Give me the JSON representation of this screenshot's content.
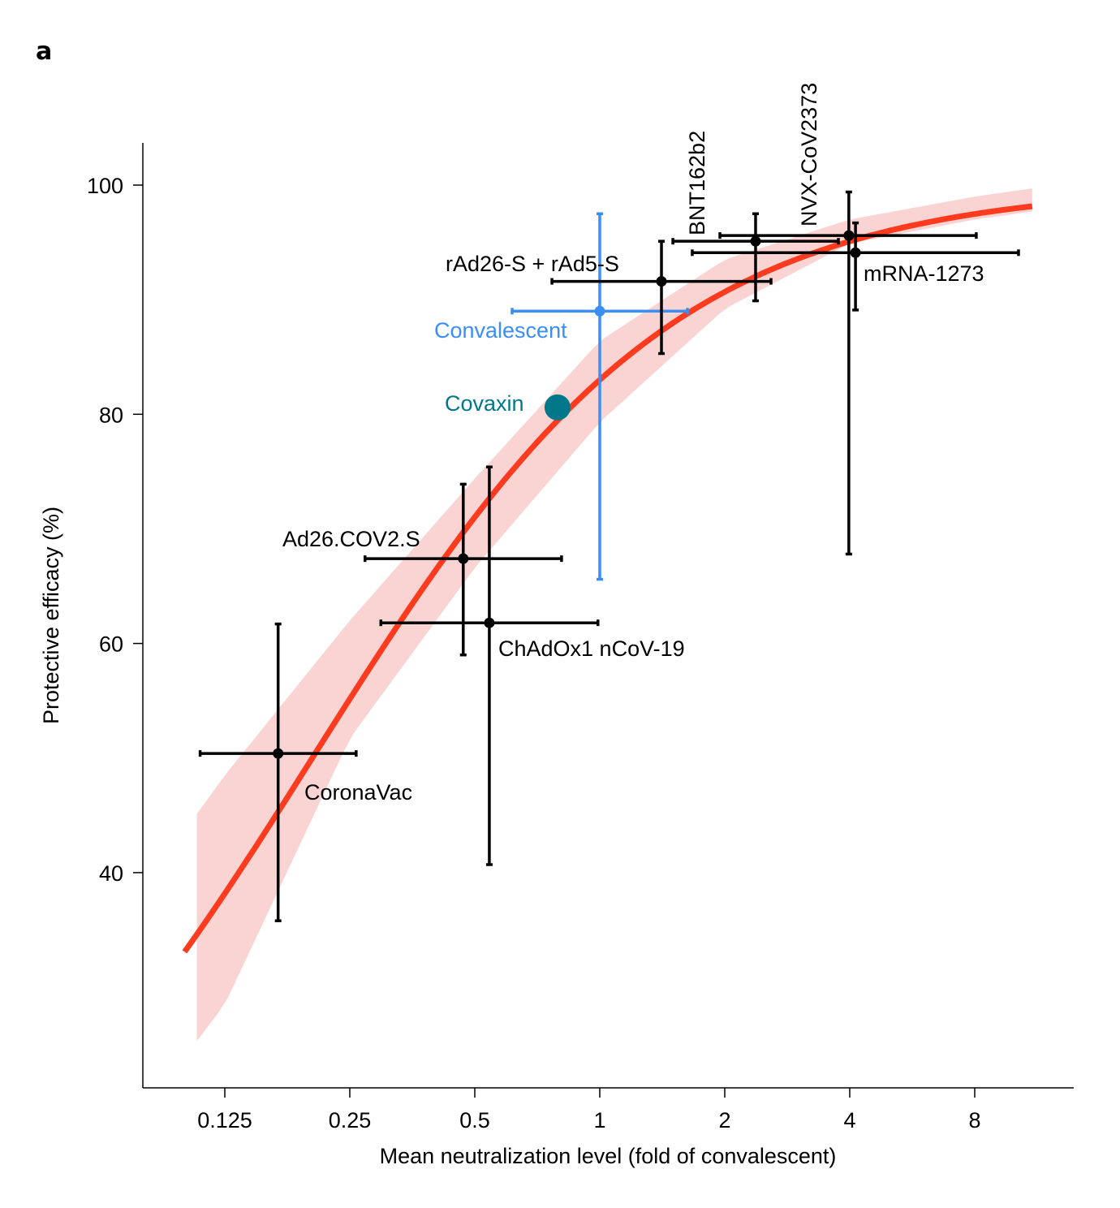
{
  "panel_label": "a",
  "chart_data": {
    "type": "scatter",
    "title": "",
    "xlabel": "Mean neutralization level (fold of convalescent)",
    "ylabel": "Protective efficacy (%)",
    "xscale": "log2",
    "xlim": [
      0.083,
      12.6
    ],
    "ylim": [
      21,
      103.7
    ],
    "xticks": [
      0.125,
      0.25,
      0.5,
      1,
      2,
      4,
      8
    ],
    "xtick_labels": [
      "0.125",
      "0.25",
      "0.5",
      "1",
      "2",
      "4",
      "8"
    ],
    "yticks": [
      40,
      60,
      80,
      100
    ],
    "ytick_labels": [
      "40",
      "60",
      "80",
      "100"
    ],
    "grid": false,
    "legend": "none",
    "colors": {
      "points": "#000000",
      "convalescent": "#3a8ef6",
      "covaxin": "#00788a",
      "fit_line": "#ff3b1f",
      "confidence_band": "#f9d4d3"
    },
    "points": [
      {
        "label": "CoronaVac",
        "x": 0.168,
        "y": 50.4,
        "x_err": [
          0.109,
          0.259
        ],
        "y_err": [
          35.8,
          61.7
        ],
        "color": "#000000"
      },
      {
        "label": "Ad26.COV2.S",
        "x": 0.469,
        "y": 67.4,
        "x_err": [
          0.272,
          0.809
        ],
        "y_err": [
          59.0,
          73.9
        ],
        "color": "#000000"
      },
      {
        "label": "ChAdOx1 nCoV-19",
        "x": 0.542,
        "y": 61.8,
        "x_err": [
          0.297,
          0.99
        ],
        "y_err": [
          40.7,
          75.4
        ],
        "color": "#000000"
      },
      {
        "label": "Convalescent",
        "x": 1.0,
        "y": 89.0,
        "x_err": [
          0.615,
          1.626
        ],
        "y_err": [
          65.6,
          97.5
        ],
        "color": "#3a8ef6"
      },
      {
        "label": "Covaxin",
        "x": 0.791,
        "y": 80.6,
        "x_err": null,
        "y_err": null,
        "color": "#00788a"
      },
      {
        "label": "rAd26-S + rAd5-S",
        "x": 1.408,
        "y": 91.6,
        "x_err": [
          0.767,
          2.585
        ],
        "y_err": [
          85.3,
          95.1
        ],
        "color": "#000000"
      },
      {
        "label": "BNT162b2",
        "x": 2.373,
        "y": 95.1,
        "x_err": [
          1.5,
          3.756
        ],
        "y_err": [
          89.9,
          97.5
        ],
        "color": "#000000"
      },
      {
        "label": "NVX-CoV2373",
        "x": 3.98,
        "y": 95.6,
        "x_err": [
          1.947,
          8.07
        ],
        "y_err": [
          67.8,
          99.4
        ],
        "color": "#000000"
      },
      {
        "label": "mRNA-1273",
        "x": 4.13,
        "y": 94.1,
        "x_err": [
          1.67,
          10.2
        ],
        "y_err": [
          89.1,
          96.7
        ],
        "color": "#000000"
      }
    ],
    "fit": {
      "type": "logistic",
      "n50": 0.203,
      "slope_per_log10": 2.29,
      "x_range": [
        0.1,
        11
      ]
    },
    "confidence_band": {
      "x": [
        0.107,
        0.125,
        0.25,
        0.5,
        1,
        2,
        4,
        8,
        11
      ],
      "upper": [
        45.1,
        48.5,
        62.0,
        74.4,
        86.4,
        93.5,
        97.0,
        99.0,
        99.7
      ],
      "lower": [
        25.3,
        28.5,
        51.7,
        66.6,
        79.3,
        89.2,
        94.9,
        97.0,
        97.7
      ]
    }
  }
}
